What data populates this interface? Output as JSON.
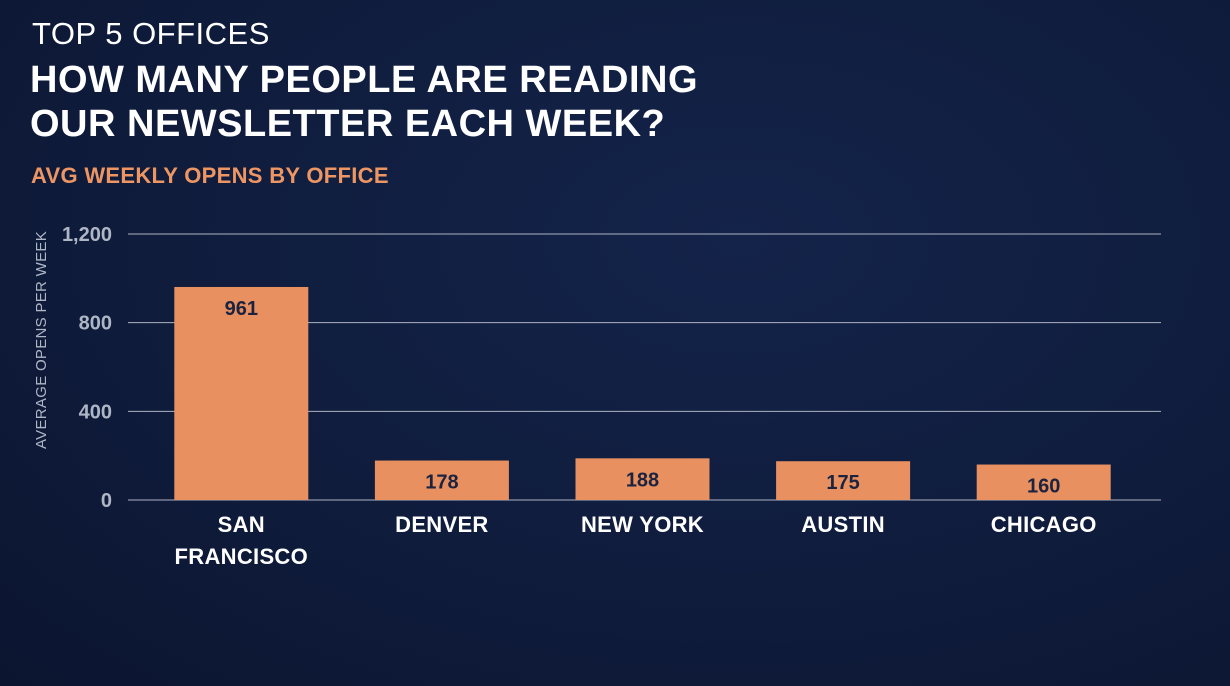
{
  "header": {
    "supertitle": "TOP 5 OFFICES",
    "title_lines": [
      "HOW MANY PEOPLE ARE READING",
      "OUR NEWSLETTER EACH WEEK?"
    ]
  },
  "colors": {
    "background": "#0f1c3c",
    "bar": "#e8905f",
    "accent": "#ee9663",
    "gridline": "#c9ced8",
    "tick_text": "#aeb6c6",
    "bar_label_text": "#1b2340"
  },
  "chart_data": {
    "type": "bar",
    "title": "AVG WEEKLY OPENS BY OFFICE",
    "xlabel": "",
    "ylabel": "AVERAGE OPENS PER WEEK",
    "categories": [
      [
        "SAN",
        "FRANCISCO"
      ],
      [
        "DENVER"
      ],
      [
        "NEW YORK"
      ],
      [
        "AUSTIN"
      ],
      [
        "CHICAGO"
      ]
    ],
    "values": [
      961,
      178,
      188,
      175,
      160
    ],
    "ylim": [
      0,
      1200
    ],
    "yticks": [
      0,
      400,
      800,
      1200
    ],
    "ytick_labels": [
      "0",
      "400",
      "800",
      "1,200"
    ],
    "grid": true,
    "data_labels": true
  }
}
